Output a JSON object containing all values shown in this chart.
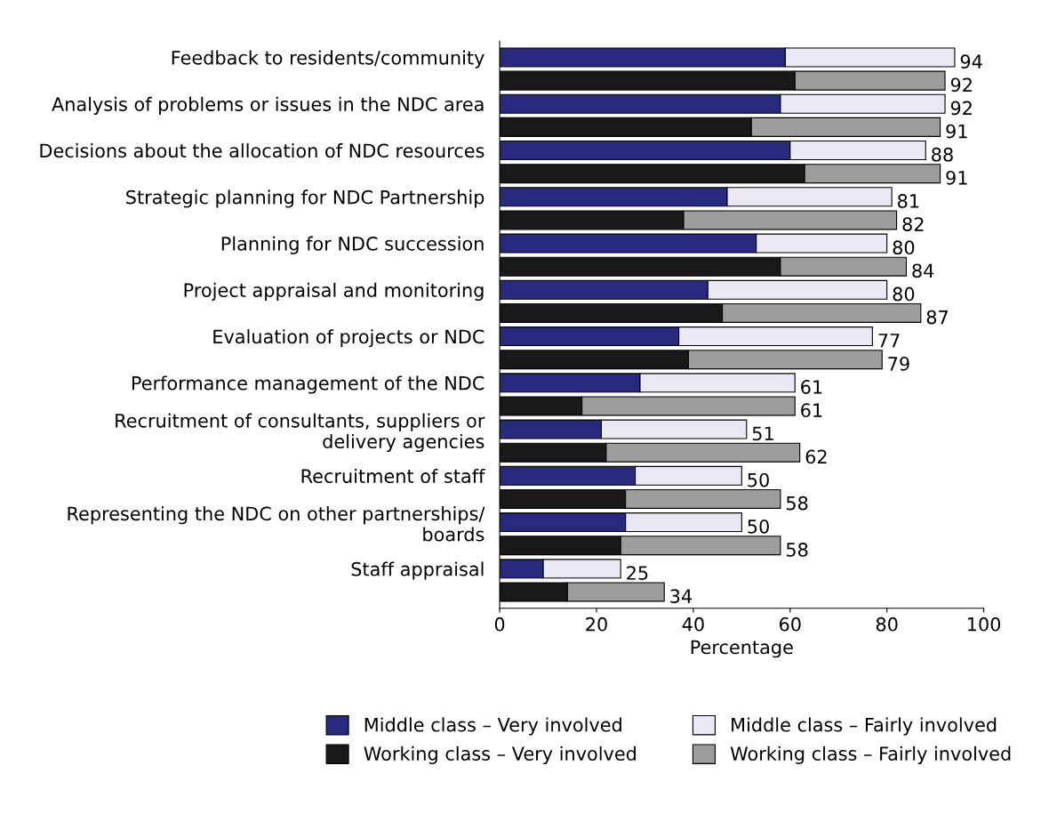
{
  "chart_data": {
    "type": "bar",
    "orientation": "horizontal",
    "stacked": true,
    "categories": [
      "Feedback to residents/community",
      null,
      "Analysis of problems or issues in the NDC area",
      null,
      "Decisions about the allocation of NDC resources",
      null,
      "Strategic planning for NDC Partnership",
      null,
      "Planning for NDC succession",
      null,
      "Project appraisal and monitoring",
      null,
      "Evaluation of projects or NDC",
      null,
      "Performance management of the NDC",
      null,
      "Recruitment of consultants, suppliers or\ndelivery agencies",
      null,
      "Recruitment of staff",
      null,
      "Representing the NDC on other partnerships/\nboards",
      null,
      "Staff appraisal",
      null
    ],
    "series": [
      {
        "name": "Middle class – Very involved",
        "color": "#272a7e",
        "values": [
          59,
          null,
          58,
          null,
          60,
          null,
          47,
          null,
          53,
          null,
          43,
          null,
          37,
          null,
          29,
          null,
          21,
          null,
          28,
          null,
          26,
          null,
          9,
          null
        ]
      },
      {
        "name": "Middle class – Fairly involved",
        "color": "#e9e8f3",
        "values": [
          35,
          null,
          34,
          null,
          28,
          null,
          34,
          null,
          27,
          null,
          37,
          null,
          40,
          null,
          32,
          null,
          30,
          null,
          22,
          null,
          24,
          null,
          16,
          null
        ]
      },
      {
        "name": "Working class – Very involved",
        "color": "#1b181c",
        "values": [
          null,
          61,
          null,
          52,
          null,
          63,
          null,
          38,
          null,
          58,
          null,
          46,
          null,
          39,
          null,
          17,
          null,
          22,
          null,
          26,
          null,
          25,
          null,
          14
        ]
      },
      {
        "name": "Working class – Fairly involved",
        "color": "#9d9d9d",
        "values": [
          null,
          31,
          null,
          39,
          null,
          28,
          null,
          44,
          null,
          26,
          null,
          41,
          null,
          40,
          null,
          44,
          null,
          40,
          null,
          32,
          null,
          33,
          null,
          20
        ]
      }
    ],
    "totals": [
      "94",
      "92",
      "92",
      "91",
      "88",
      "91",
      "81",
      "82",
      "80",
      "84",
      "80",
      "87",
      "77",
      "79",
      "61",
      "61",
      "51",
      "62",
      "50",
      "58",
      "50",
      "58",
      "25",
      "34"
    ],
    "xlim": [
      0,
      100
    ],
    "xticks": [
      0,
      20,
      40,
      60,
      80,
      100
    ],
    "xlabel": "Percentage",
    "grid": false,
    "legend": "bottom"
  }
}
